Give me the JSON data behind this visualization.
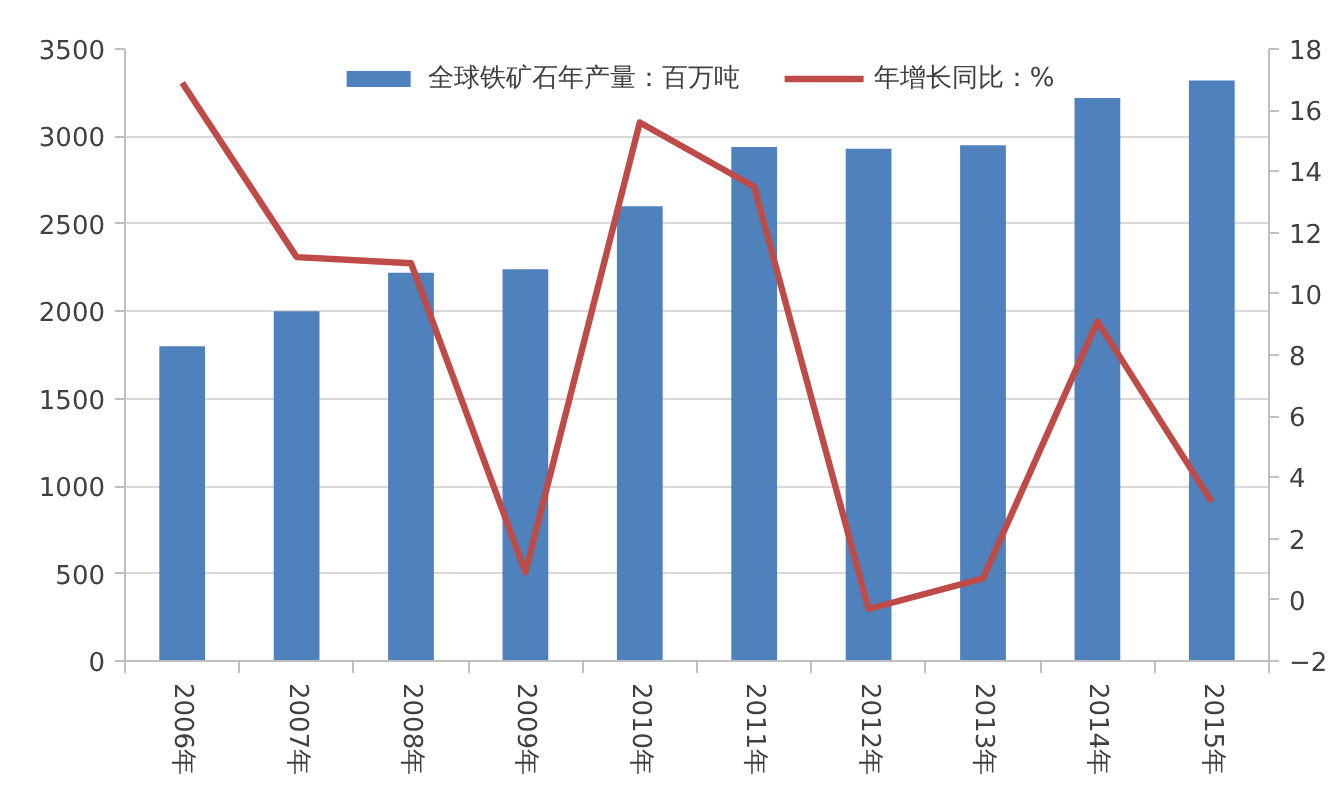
{
  "chart_data": {
    "type": "bar",
    "categories": [
      "2006年",
      "2007年",
      "2008年",
      "2009年",
      "2010年",
      "2011年",
      "2012年",
      "2013年",
      "2014年",
      "2015年"
    ],
    "series": [
      {
        "name": "全球铁矿石年产量：百万吨",
        "color": "#4f81bd",
        "values": [
          1800,
          2000,
          2220,
          2240,
          2600,
          2940,
          2930,
          2950,
          3220,
          3320
        ]
      },
      {
        "name": "年增长同比：%",
        "type": "line",
        "axis": "y2",
        "color": "#be4b48",
        "values": [
          16.9,
          11.2,
          11.0,
          0.9,
          15.6,
          13.5,
          -0.3,
          0.7,
          9.1,
          3.2
        ]
      }
    ],
    "ylim": [
      0,
      3500
    ],
    "yticks": [
      0,
      500,
      1000,
      1500,
      2000,
      2500,
      3000,
      3500
    ],
    "y2lim": [
      -2,
      18
    ],
    "y2ticks": [
      -2,
      0,
      2,
      4,
      6,
      8,
      10,
      12,
      14,
      16,
      18
    ],
    "grid": "y",
    "legend": "top"
  }
}
